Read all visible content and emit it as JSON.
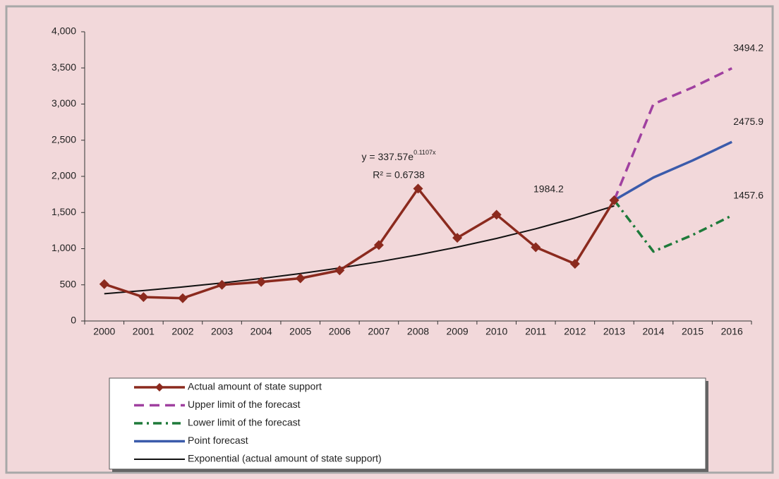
{
  "chart_data": {
    "type": "line",
    "categories": [
      "2000",
      "2001",
      "2002",
      "2003",
      "2004",
      "2005",
      "2006",
      "2007",
      "2008",
      "2009",
      "2010",
      "2011",
      "2012",
      "2013",
      "2014",
      "2015",
      "2016"
    ],
    "ylim": [
      0,
      4000
    ],
    "yticks": [
      0,
      500,
      {
        "value": 1000,
        "label": "1,000"
      },
      {
        "value": 1500,
        "label": "1,500"
      },
      {
        "value": 2000,
        "label": "2,000"
      },
      {
        "value": 2500,
        "label": "2,500"
      },
      {
        "value": 3000,
        "label": "3,000"
      },
      {
        "value": 3500,
        "label": "3,500"
      },
      {
        "value": 4000,
        "label": "4,000"
      }
    ],
    "series": [
      {
        "name": "Actual amount of state support",
        "color": "#8b2a1e",
        "style": "solid",
        "marker": "diamond",
        "values": [
          510,
          330,
          315,
          500,
          540,
          590,
          700,
          1050,
          1830,
          1150,
          1470,
          1020,
          790,
          1670,
          null,
          null,
          null
        ]
      },
      {
        "name": "Upper limit of the forecast",
        "color": "#a040a0",
        "style": "dashed",
        "values": [
          null,
          null,
          null,
          null,
          null,
          null,
          null,
          null,
          null,
          null,
          null,
          null,
          null,
          1670,
          3000,
          3230,
          3494.2
        ],
        "value_labels": [
          null,
          null,
          null,
          null,
          null,
          null,
          null,
          null,
          null,
          null,
          null,
          null,
          null,
          null,
          null,
          null,
          "3494.2"
        ]
      },
      {
        "name": "Lower limit of the forecast",
        "color": "#1e7a3a",
        "style": "dash-dot",
        "values": [
          null,
          null,
          null,
          null,
          null,
          null,
          null,
          null,
          null,
          null,
          null,
          null,
          null,
          1670,
          960,
          1190,
          1457.6
        ],
        "value_labels": [
          null,
          null,
          null,
          null,
          null,
          null,
          null,
          null,
          null,
          null,
          null,
          null,
          null,
          null,
          null,
          null,
          "1457.6"
        ]
      },
      {
        "name": "Point forecast",
        "color": "#3b5bab",
        "style": "solid",
        "values": [
          null,
          null,
          null,
          null,
          null,
          null,
          null,
          null,
          null,
          null,
          null,
          null,
          null,
          1670,
          1984.2,
          2220,
          2475.9
        ],
        "value_labels": [
          null,
          null,
          null,
          null,
          null,
          null,
          null,
          null,
          null,
          null,
          null,
          null,
          null,
          null,
          "1984.2",
          null,
          "2475.9"
        ]
      },
      {
        "name": "Exponential (actual amount of state support)",
        "color": "#111111",
        "style": "thin",
        "values": [
          377.1,
          421.3,
          470.6,
          525.7,
          587.3,
          656.1,
          732.9,
          818.8,
          914.7,
          1021.8,
          1141.5,
          1275.2,
          1424.6,
          1591.4,
          null,
          null,
          null
        ]
      }
    ],
    "equation": {
      "base": "y = 337.57e",
      "exponent": "0.1107x"
    },
    "r_squared": "R² = 0.6738"
  }
}
